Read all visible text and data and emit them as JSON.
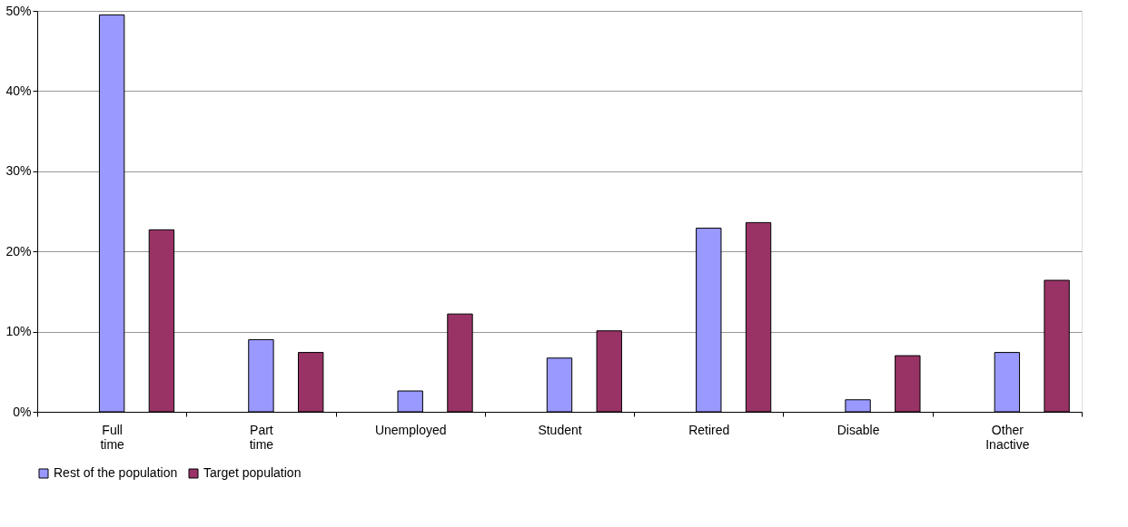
{
  "chart_data": {
    "type": "bar",
    "categories": [
      "Full time",
      "Part time",
      "Unemployed",
      "Student",
      "Retired",
      "Disable",
      "Other Inactive"
    ],
    "series": [
      {
        "name": "Rest of the population",
        "color": "#9999ff",
        "values": [
          49.5,
          9.0,
          2.6,
          6.7,
          22.9,
          1.5,
          7.4
        ]
      },
      {
        "name": "Target population",
        "color": "#993366",
        "values": [
          22.7,
          7.4,
          12.2,
          10.1,
          23.6,
          7.0,
          16.4
        ]
      }
    ],
    "ylim": [
      0,
      50
    ],
    "yticks": [
      {
        "value": 0,
        "label": "0%"
      },
      {
        "value": 10,
        "label": "10%"
      },
      {
        "value": 20,
        "label": "20%"
      },
      {
        "value": 30,
        "label": "30%"
      },
      {
        "value": 40,
        "label": "40%"
      },
      {
        "value": 50,
        "label": "50%"
      }
    ],
    "grid": "y",
    "legend": "bottom"
  }
}
